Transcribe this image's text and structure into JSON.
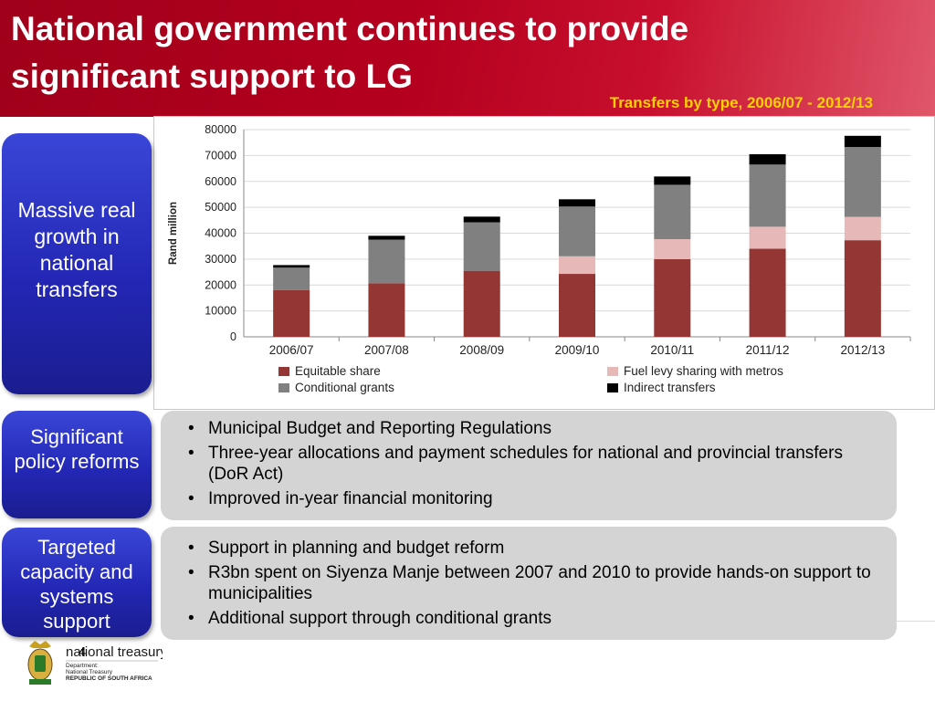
{
  "slide": {
    "title": "National government continues to provide significant support to LG",
    "chart_caption": "Transfers by type, 2006/07 - 2012/13",
    "page_number": "4"
  },
  "boxes": [
    {
      "label": "Massive real growth in national transfers"
    },
    {
      "label": "Significant policy reforms",
      "bullets": [
        "Municipal Budget and Reporting Regulations",
        "Three-year allocations and payment schedules for national and provincial transfers (DoR Act)",
        "Improved in-year financial monitoring"
      ]
    },
    {
      "label": "Targeted capacity and systems support",
      "bullets": [
        "Support in planning and budget reform",
        "R3bn spent on Siyenza Manje between 2007 and  2010 to provide hands-on support to municipalities",
        "Additional support through conditional grants"
      ]
    }
  ],
  "logo": {
    "name": "national treasury",
    "line1": "Department:",
    "line2": "National Treasury",
    "line3": "REPUBLIC OF SOUTH AFRICA"
  },
  "chart_data": {
    "type": "bar",
    "stacked": true,
    "title": "",
    "ylabel": "Rand million",
    "xlabel": "",
    "ylim": [
      0,
      80000
    ],
    "yticks": [
      0,
      10000,
      20000,
      30000,
      40000,
      50000,
      60000,
      70000,
      80000
    ],
    "grid": true,
    "legend_position": "bottom",
    "categories": [
      "2006/07",
      "2007/08",
      "2008/09",
      "2009/10",
      "2010/11",
      "2011/12",
      "2012/13"
    ],
    "series": [
      {
        "name": "Equitable share",
        "color": "#943634",
        "values": [
          18000,
          20700,
          25500,
          24300,
          30000,
          34000,
          37300
        ]
      },
      {
        "name": "Fuel levy sharing with metros",
        "color": "#e6b9b8",
        "values": [
          0,
          0,
          0,
          6800,
          7700,
          8500,
          9000
        ]
      },
      {
        "name": "Conditional grants",
        "color": "#808080",
        "values": [
          8700,
          16800,
          18700,
          19200,
          21000,
          24000,
          27000
        ]
      },
      {
        "name": "Indirect transfers",
        "color": "#000000",
        "values": [
          1000,
          1500,
          2200,
          2800,
          3200,
          4000,
          4300
        ]
      }
    ]
  }
}
